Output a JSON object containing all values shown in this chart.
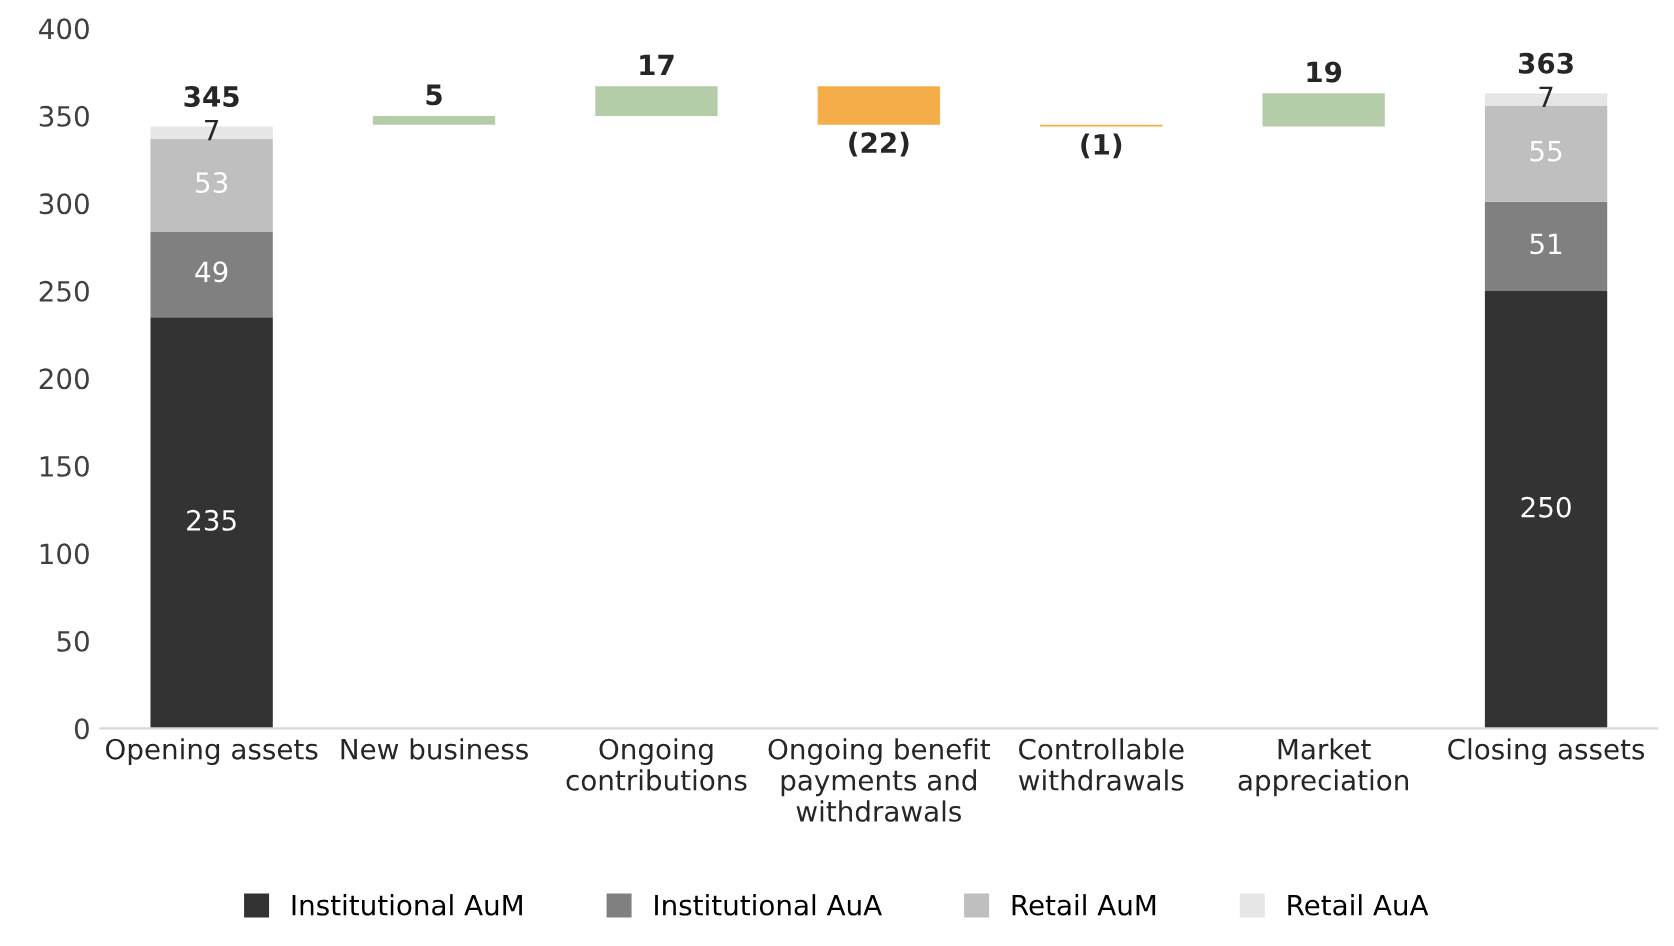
{
  "chart_data": {
    "type": "bar",
    "stacked": true,
    "categories": [
      "Opening assets",
      "New business",
      "Ongoing\ncontributions",
      "Ongoing benefit\npayments and\nwithdrawals",
      "Controllable\nwithdrawals",
      "Market\nappreciation",
      "Closing assets"
    ],
    "series": [
      {
        "name": "Institutional AuM",
        "color": "#333333",
        "values": [
          235,
          null,
          null,
          null,
          null,
          null,
          250
        ]
      },
      {
        "name": "Institutional AuA",
        "color": "#808080",
        "values": [
          49,
          null,
          null,
          null,
          null,
          null,
          51
        ]
      },
      {
        "name": "Retail AuM",
        "color": "#bfbfbf",
        "values": [
          53,
          null,
          null,
          null,
          null,
          null,
          55
        ]
      },
      {
        "name": "Retail AuA",
        "color": "#e6e6e6",
        "values": [
          7,
          null,
          null,
          null,
          null,
          null,
          7
        ]
      },
      {
        "colors": [
          null,
          "#b5cca8",
          "#b5cca8",
          "#f5ad4a",
          "#f5ad4a",
          "#b5cca8",
          null
        ],
        "values": [
          null,
          5,
          17,
          -22,
          -1,
          19,
          null
        ],
        "base": [
          null,
          345,
          350,
          367,
          345,
          344,
          null
        ],
        "value_labels": [
          null,
          "5",
          "17",
          "(22)",
          "(1)",
          "19",
          null
        ]
      }
    ],
    "totals": [
      "345",
      null,
      null,
      null,
      null,
      null,
      "363"
    ],
    "data_labels": true,
    "ylim": [
      0,
      400
    ],
    "yticks": [
      0,
      50,
      100,
      150,
      200,
      250,
      300,
      350,
      400
    ],
    "grid": false,
    "legend": "bottom"
  }
}
